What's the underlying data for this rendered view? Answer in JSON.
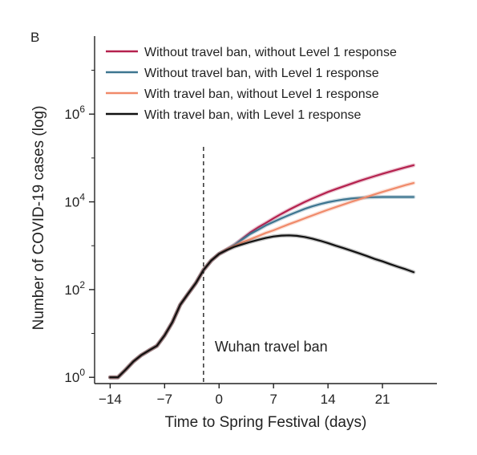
{
  "chart_data": {
    "type": "line",
    "panel_label": "B",
    "xlabel": "Time to Spring Festival (days)",
    "ylabel": "Number of COVID-19 cases (log)",
    "y_scale": "log10",
    "xlim": [
      -16,
      28
    ],
    "ylim": [
      0.72,
      60000000
    ],
    "x_ticks": [
      -14,
      -7,
      0,
      7,
      14,
      21
    ],
    "x_tick_labels": [
      "−14",
      "−7",
      "0",
      "7",
      "14",
      "21"
    ],
    "y_ticks": [
      1,
      100,
      10000,
      1000000
    ],
    "y_tick_labels": [
      {
        "base": "10",
        "exp": "0"
      },
      {
        "base": "10",
        "exp": "2"
      },
      {
        "base": "10",
        "exp": "4"
      },
      {
        "base": "10",
        "exp": "6"
      }
    ],
    "legend_position": "top-right",
    "annotation": {
      "x": -2,
      "text": "Wuhan travel ban",
      "style": "dashed vertical line"
    },
    "colors": {
      "series1": "#b5214e",
      "series2": "#3d7590",
      "series3": "#f08a6a",
      "series4": "#111111"
    },
    "series": [
      {
        "name": "Without travel ban, without Level 1 response",
        "color": "#b5214e",
        "x": [
          -14,
          -13,
          -12,
          -11,
          -10,
          -9,
          -8,
          -7,
          -6,
          -5,
          -4,
          -3,
          -2,
          -1,
          0,
          1,
          2,
          3,
          4,
          5,
          6,
          7,
          8,
          9,
          10,
          11,
          12,
          13,
          14,
          15,
          16,
          17,
          18,
          19,
          20,
          21,
          22,
          23,
          24,
          25
        ],
        "y": [
          1,
          1,
          1.5,
          2.3,
          3.2,
          4.1,
          5.2,
          9,
          18,
          45,
          80,
          140,
          280,
          460,
          650,
          820,
          1050,
          1450,
          2000,
          2600,
          3300,
          4200,
          5300,
          6600,
          8100,
          9900,
          11900,
          14200,
          16800,
          19500,
          22500,
          26000,
          29800,
          34000,
          38500,
          43500,
          49000,
          55000,
          61500,
          68500
        ]
      },
      {
        "name": "Without travel ban, with Level 1 response",
        "color": "#3d7590",
        "x": [
          -14,
          -13,
          -12,
          -11,
          -10,
          -9,
          -8,
          -7,
          -6,
          -5,
          -4,
          -3,
          -2,
          -1,
          0,
          1,
          2,
          3,
          4,
          5,
          6,
          7,
          8,
          9,
          10,
          11,
          12,
          13,
          14,
          15,
          16,
          17,
          18,
          19,
          20,
          21,
          22,
          23,
          24,
          25
        ],
        "y": [
          1,
          1,
          1.5,
          2.3,
          3.2,
          4.1,
          5.2,
          9,
          18,
          45,
          80,
          140,
          280,
          460,
          650,
          820,
          1050,
          1400,
          1850,
          2300,
          2900,
          3500,
          4200,
          5000,
          5900,
          6900,
          7900,
          8900,
          9800,
          10600,
          11300,
          11900,
          12300,
          12600,
          12800,
          12900,
          12900,
          12900,
          12900,
          12900
        ]
      },
      {
        "name": "With travel ban, without Level 1 response",
        "color": "#f08a6a",
        "x": [
          -14,
          -13,
          -12,
          -11,
          -10,
          -9,
          -8,
          -7,
          -6,
          -5,
          -4,
          -3,
          -2,
          -1,
          0,
          1,
          2,
          3,
          4,
          5,
          6,
          7,
          8,
          9,
          10,
          11,
          12,
          13,
          14,
          15,
          16,
          17,
          18,
          19,
          20,
          21,
          22,
          23,
          24,
          25
        ],
        "y": [
          1,
          1,
          1.5,
          2.3,
          3.2,
          4.1,
          5.2,
          9,
          18,
          45,
          80,
          140,
          280,
          460,
          650,
          820,
          1000,
          1200,
          1400,
          1650,
          1950,
          2250,
          2650,
          3100,
          3600,
          4200,
          4900,
          5700,
          6600,
          7600,
          8700,
          10000,
          11400,
          13000,
          14800,
          16800,
          19000,
          21500,
          24200,
          27000
        ]
      },
      {
        "name": "With travel ban, with Level 1 response",
        "color": "#111111",
        "x": [
          -14,
          -13,
          -12,
          -11,
          -10,
          -9,
          -8,
          -7,
          -6,
          -5,
          -4,
          -3,
          -2,
          -1,
          0,
          1,
          2,
          3,
          4,
          5,
          6,
          7,
          8,
          9,
          10,
          11,
          12,
          13,
          14,
          15,
          16,
          17,
          18,
          19,
          20,
          21,
          22,
          23,
          24,
          25
        ],
        "y": [
          1,
          1,
          1.5,
          2.3,
          3.2,
          4.1,
          5.2,
          9,
          18,
          45,
          80,
          140,
          280,
          460,
          650,
          800,
          950,
          1080,
          1220,
          1360,
          1500,
          1620,
          1700,
          1720,
          1680,
          1580,
          1450,
          1300,
          1150,
          1000,
          880,
          770,
          670,
          580,
          500,
          440,
          380,
          330,
          290,
          250
        ]
      }
    ]
  }
}
